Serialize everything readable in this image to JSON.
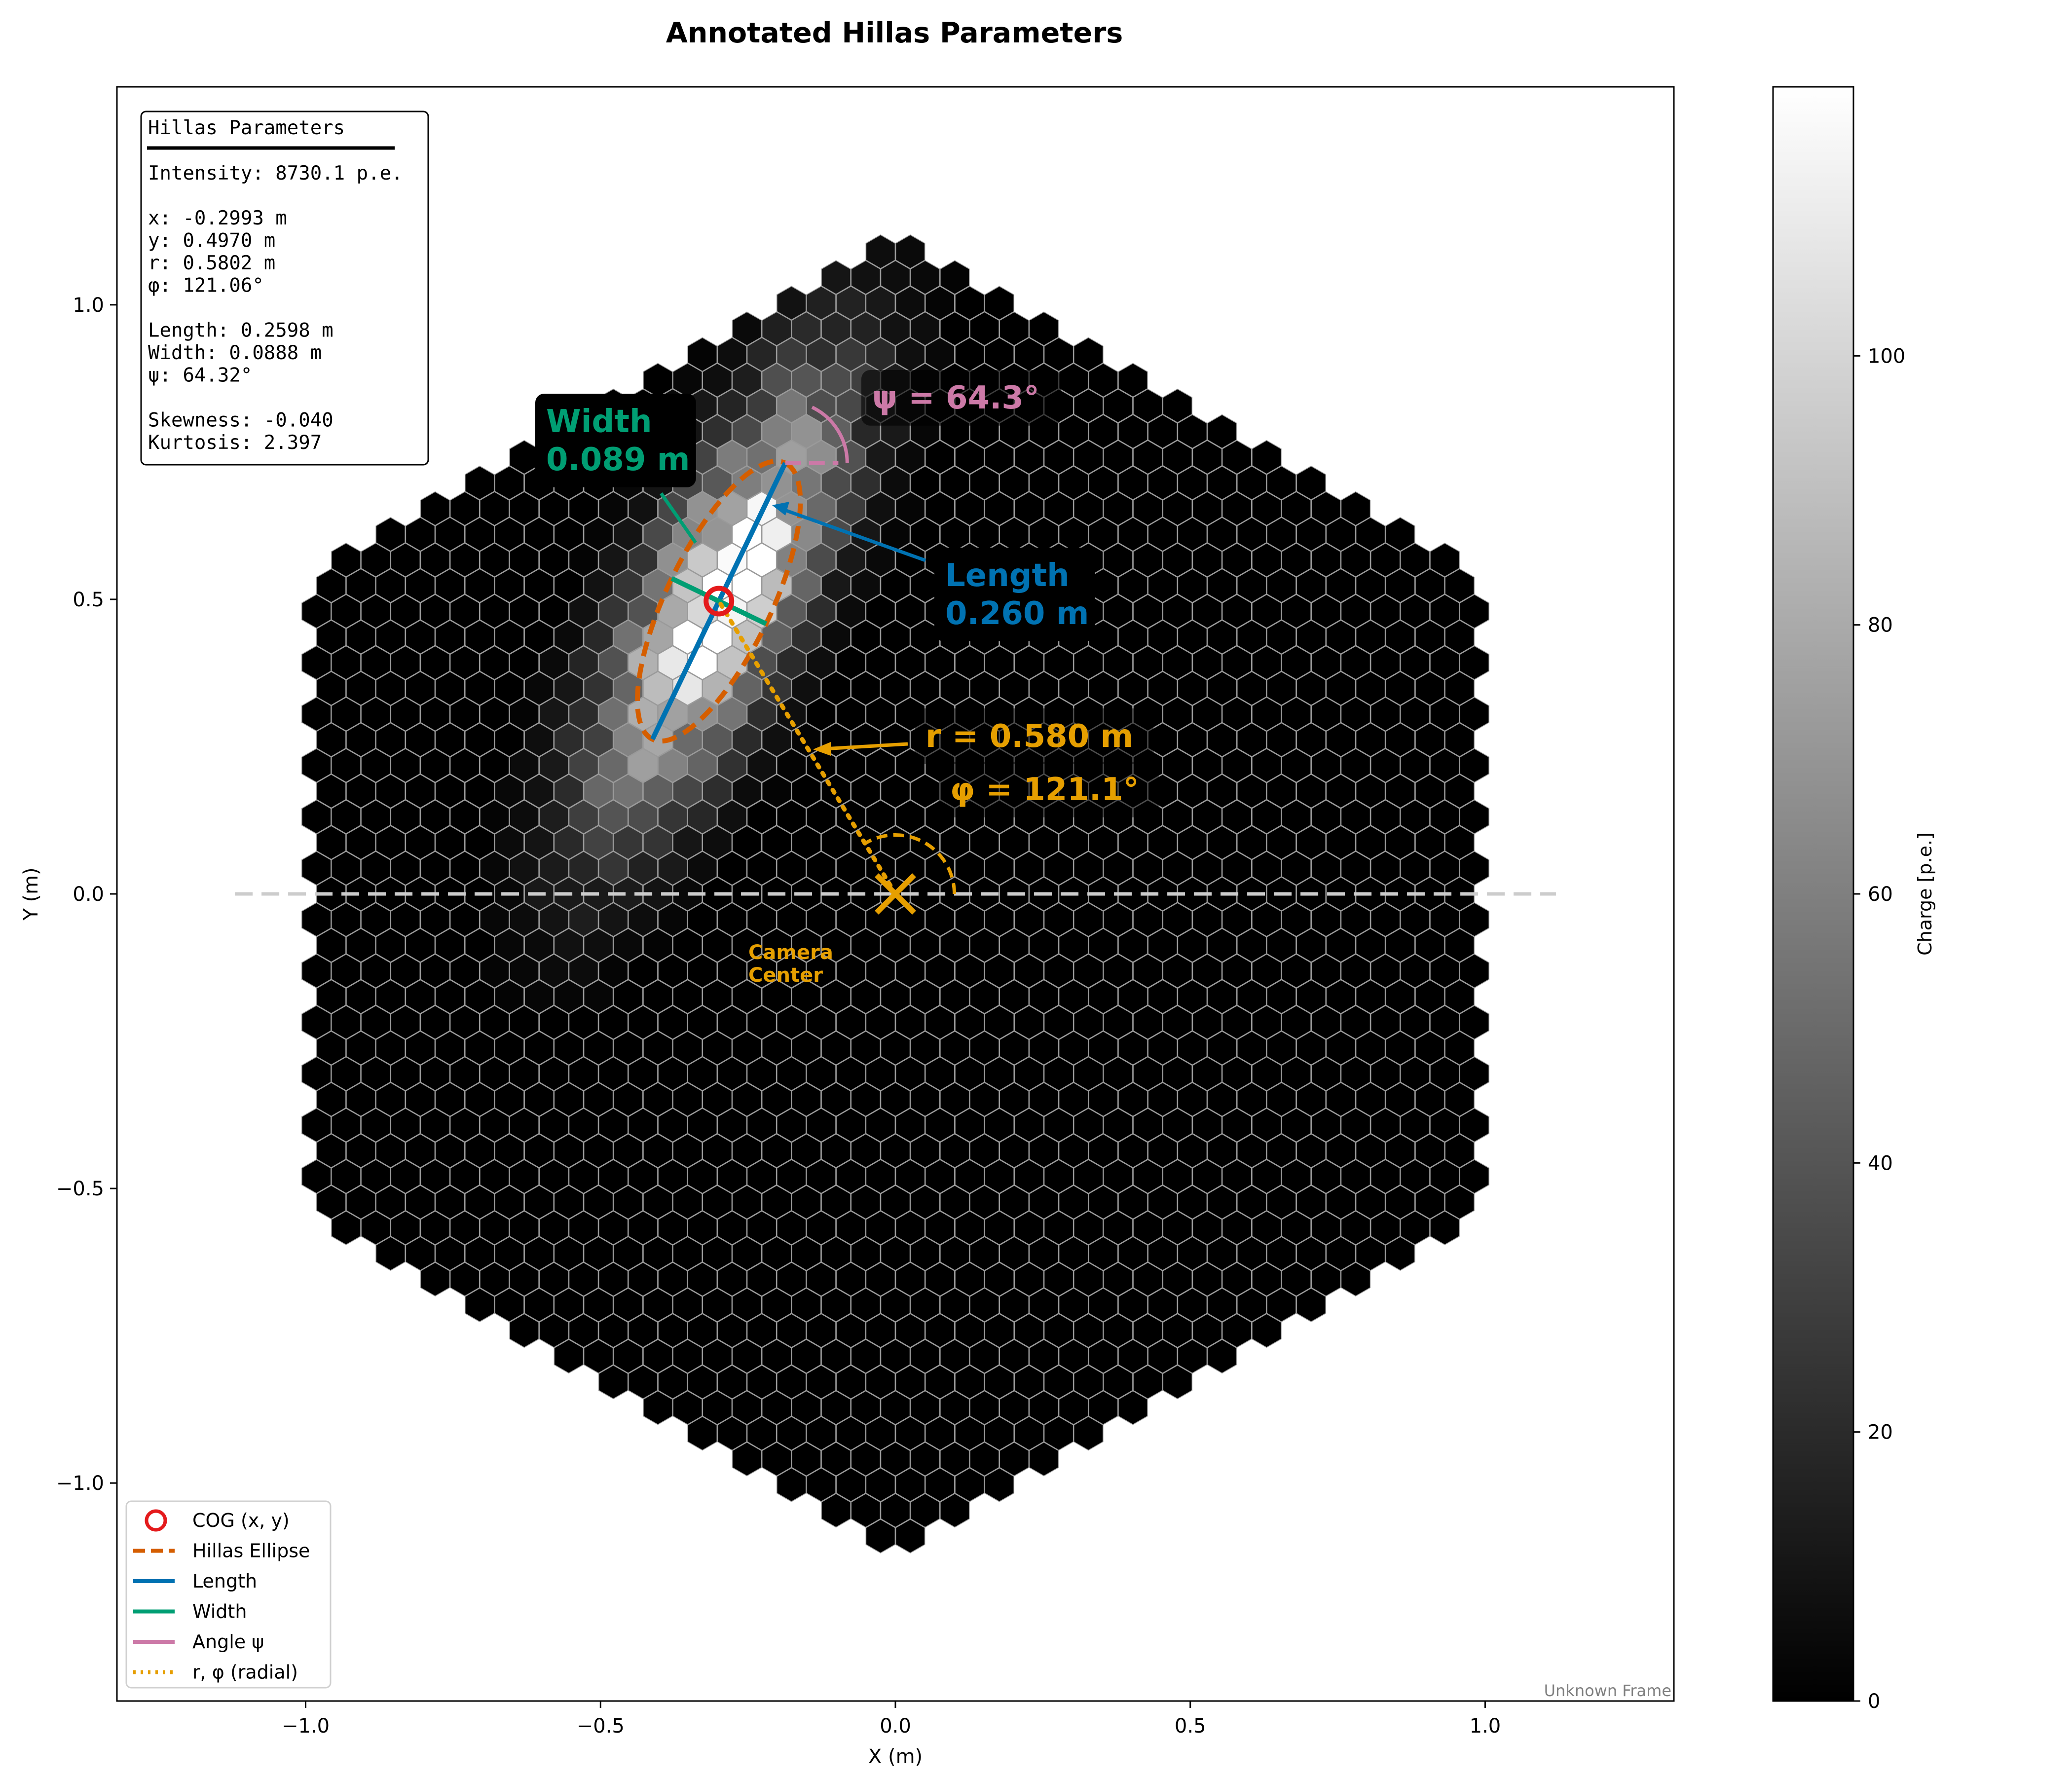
{
  "chart_data": {
    "type": "heatmap",
    "title": "Annotated Hillas Parameters",
    "xlabel": "X  (m)",
    "ylabel": "Y  (m)",
    "xlim": [
      -1.32,
      1.32
    ],
    "ylim": [
      -1.37,
      1.37
    ],
    "x_ticks": [
      -1.0,
      -0.5,
      0.0,
      0.5,
      1.0
    ],
    "x_tick_labels": [
      "−1.0",
      "−0.5",
      "0.0",
      "0.5",
      "1.0"
    ],
    "y_ticks": [
      -1.0,
      -0.5,
      0.0,
      0.5,
      1.0
    ],
    "y_tick_labels": [
      "−1.0",
      "−0.5",
      "0.0",
      "0.5",
      "1.0"
    ],
    "colorbar": {
      "label": "Charge [p.e.]",
      "range": [
        0,
        120
      ],
      "ticks": [
        0,
        20,
        40,
        60,
        80,
        100
      ],
      "tick_labels": [
        "0",
        "20",
        "40",
        "60",
        "80",
        "100"
      ],
      "colormap": "gray"
    },
    "camera": {
      "shape": "hexagonal",
      "outer_radius_m": 1.12,
      "pixel_radius_m": 0.0285,
      "center_label": "Camera\nCenter",
      "frame_label": "Unknown Frame"
    },
    "hillas": {
      "intensity_pe": 8730.1,
      "x_m": -0.2993,
      "y_m": 0.497,
      "r_m": 0.5802,
      "phi_deg": 121.06,
      "length_m": 0.2598,
      "width_m": 0.0888,
      "psi_deg": 64.32,
      "skewness": -0.04,
      "kurtosis": 2.397
    },
    "stats_box": {
      "title": "Hillas Parameters",
      "lines": [
        "Intensity: 8730.1 p.e.",
        "",
        "x: -0.2993 m",
        "y: 0.4970 m",
        "r: 0.5802 m",
        "φ: 121.06°",
        "",
        "Length: 0.2598 m",
        "Width: 0.0888 m",
        "ψ: 64.32°",
        "",
        "Skewness: -0.040",
        "Kurtosis: 2.397"
      ]
    },
    "annotations": {
      "width": [
        "Width",
        "0.089 m"
      ],
      "length": [
        "Length",
        "0.260 m"
      ],
      "psi": "ψ = 64.3°",
      "r": "r = 0.580 m",
      "phi": "φ = 121.1°"
    },
    "legend": {
      "placement": "lower-left",
      "entries": [
        {
          "label": "COG (x, y)",
          "color": "#e41a1c",
          "style": "circle"
        },
        {
          "label": "Hillas Ellipse",
          "color": "#d55e00",
          "style": "dashed"
        },
        {
          "label": "Length",
          "color": "#0072b2",
          "style": "solid"
        },
        {
          "label": "Width",
          "color": "#009e73",
          "style": "solid"
        },
        {
          "label": "Angle ψ",
          "color": "#cc79a7",
          "style": "solid"
        },
        {
          "label": "r, φ (radial)",
          "color": "#e69f00",
          "style": "dotted"
        }
      ]
    },
    "colors": {
      "cog": "#e41a1c",
      "ellipse": "#d55e00",
      "length": "#0072b2",
      "width": "#009e73",
      "psi": "#cc79a7",
      "radial": "#e69f00"
    }
  }
}
